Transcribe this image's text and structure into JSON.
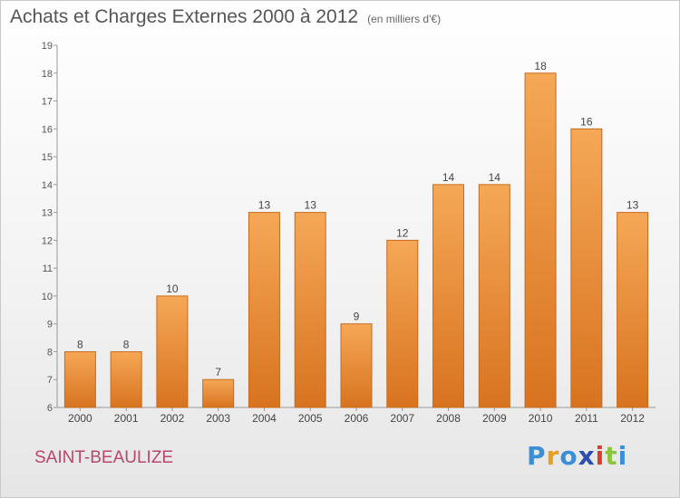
{
  "header": {
    "title": "Achats et Charges Externes 2000 à 2012",
    "subtitle": "(en milliers d'€)"
  },
  "footer": {
    "place": "SAINT-BEAULIZE",
    "logo_letters": [
      "P",
      "r",
      "o",
      "x",
      "i",
      "t",
      "i"
    ],
    "logo_colors": [
      "#3a8fd6",
      "#e8a020",
      "#3a8fd6",
      "#2a4fb0",
      "#e03a2a",
      "#8cc63f",
      "#3a8fd6"
    ]
  },
  "chart_data": {
    "type": "bar",
    "title": "Achats et Charges Externes 2000 à 2012",
    "subtitle": "(en milliers d'€)",
    "categories": [
      "2000",
      "2001",
      "2002",
      "2003",
      "2004",
      "2005",
      "2006",
      "2007",
      "2008",
      "2009",
      "2010",
      "2011",
      "2012"
    ],
    "values": [
      8,
      8,
      10,
      7,
      13,
      13,
      9,
      12,
      14,
      14,
      18,
      16,
      13
    ],
    "ylim": [
      6,
      19
    ],
    "yticks": [
      6,
      7,
      8,
      9,
      10,
      11,
      12,
      13,
      14,
      15,
      16,
      17,
      18,
      19
    ],
    "grid": false,
    "bar_color_top": "#f5a857",
    "bar_color_bottom": "#d8731f",
    "bar_edge_color": "#c86a1c"
  }
}
